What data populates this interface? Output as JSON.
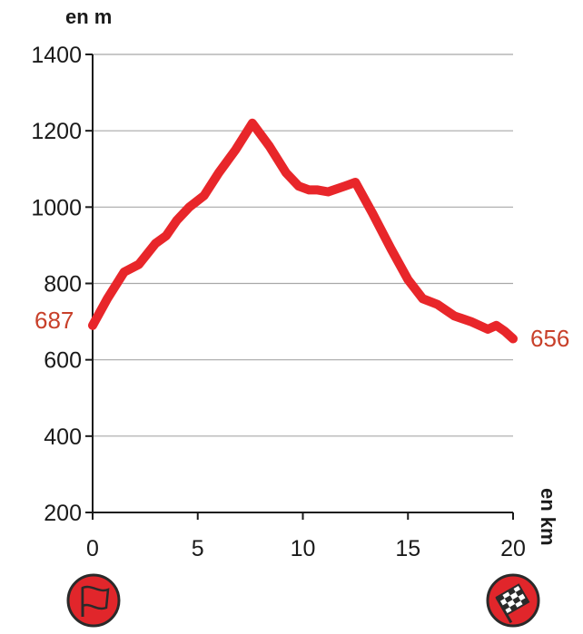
{
  "chart_data": {
    "type": "line",
    "ylabel": "en m",
    "xlabel": "en km",
    "xlim": [
      0,
      20
    ],
    "ylim": [
      200,
      1400
    ],
    "xticks": [
      "0",
      "5",
      "10",
      "15",
      "20"
    ],
    "yticks": [
      "200",
      "400",
      "600",
      "800",
      "1000",
      "1200",
      "1400"
    ],
    "grid": true,
    "series": [
      {
        "color": "#e8262a",
        "x": [
          0,
          0.7,
          1.5,
          2.2,
          3.0,
          3.5,
          4.0,
          4.6,
          5.3,
          6.0,
          6.8,
          7.6,
          8.4,
          9.2,
          9.8,
          10.3,
          10.7,
          11.2,
          12.0,
          12.5,
          13.3,
          14.2,
          15.0,
          15.7,
          16.4,
          17.2,
          18.0,
          18.8,
          19.2,
          19.6,
          20.0
        ],
        "y": [
          690,
          760,
          830,
          850,
          905,
          925,
          965,
          1000,
          1030,
          1090,
          1150,
          1220,
          1160,
          1090,
          1055,
          1045,
          1045,
          1040,
          1055,
          1065,
          985,
          890,
          810,
          760,
          745,
          715,
          700,
          680,
          690,
          675,
          655
        ]
      }
    ],
    "annotations": {
      "start_value": "687",
      "end_value": "656",
      "color": "#c8402a"
    },
    "icons": {
      "start": "start-flag-icon",
      "finish": "checkered-flag-icon"
    }
  }
}
